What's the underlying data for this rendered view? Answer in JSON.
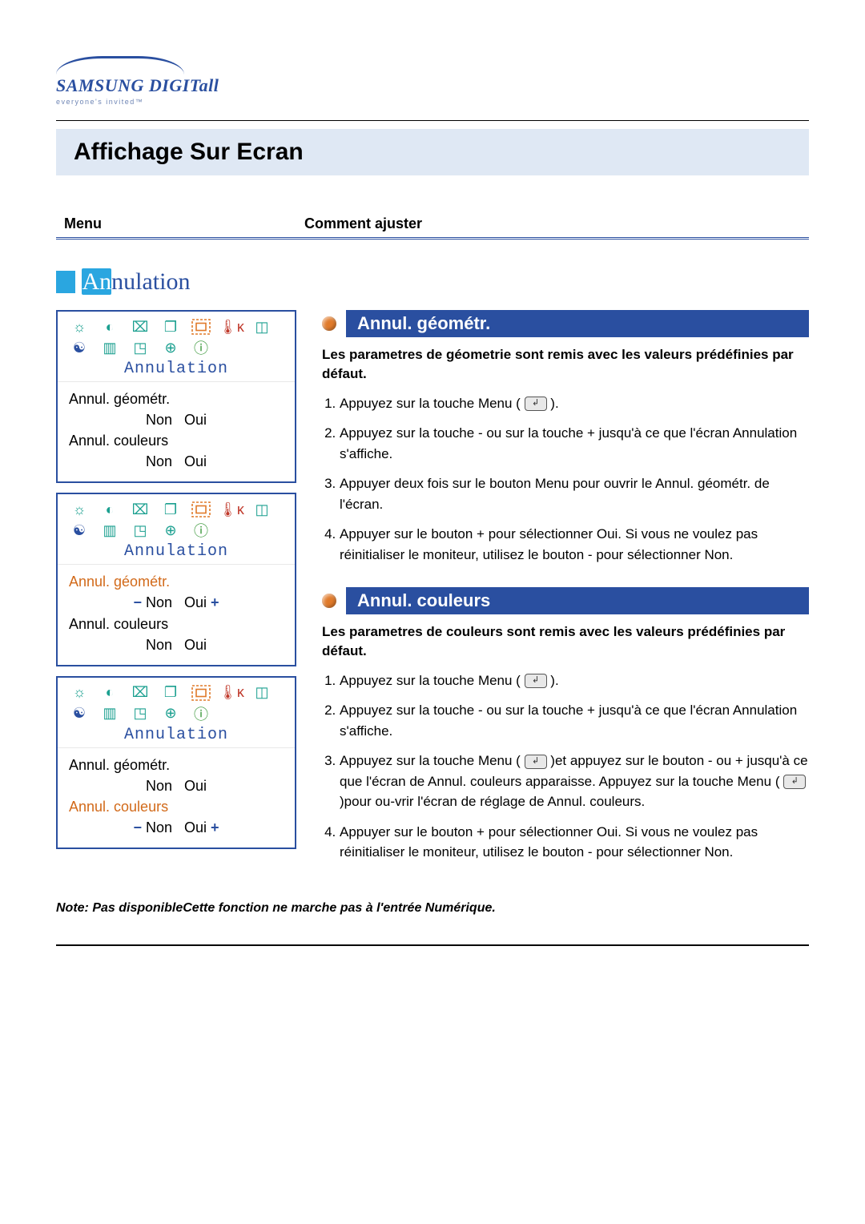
{
  "logo": {
    "brand": "SAMSUNG DIGITall",
    "tagline": "everyone's invited™"
  },
  "page_title": "Affichage Sur Ecran",
  "columns": {
    "menu": "Menu",
    "how": "Comment ajuster"
  },
  "section_heading": "Annulation",
  "osd": {
    "title": "Annulation",
    "item_geom": "Annul. géométr.",
    "item_colors": "Annul. couleurs",
    "opt_no": "Non",
    "opt_yes": "Oui",
    "icons": [
      {
        "name": "brightness-icon",
        "glyph": "☼",
        "color": "c-teal"
      },
      {
        "name": "contrast-icon",
        "glyph": "◐",
        "color": "c-teal"
      },
      {
        "name": "position-icon",
        "glyph": "⌧",
        "color": "c-teal"
      },
      {
        "name": "size-icon",
        "glyph": "❐",
        "color": "c-teal"
      },
      {
        "name": "reset-icon",
        "glyph": "svg-reset",
        "color": "c-orange",
        "highlight": true
      },
      {
        "name": "temperature-icon",
        "glyph": "🌡ᴋ",
        "color": "c-red"
      },
      {
        "name": "geometry-icon",
        "glyph": "◫",
        "color": "c-teal"
      },
      {
        "name": "color-icon",
        "glyph": "☯",
        "color": "c-blue"
      },
      {
        "name": "language-icon",
        "glyph": "▥",
        "color": "c-teal"
      },
      {
        "name": "pip-icon",
        "glyph": "◳",
        "color": "c-teal"
      },
      {
        "name": "clock-icon",
        "glyph": "⊕",
        "color": "c-teal"
      },
      {
        "name": "info-icon",
        "glyph": "ⓘ",
        "color": "c-green"
      }
    ]
  },
  "right": {
    "geom": {
      "title": "Annul. géométr.",
      "desc": "Les parametres de géometrie sont remis avec les valeurs prédéfinies par défaut.",
      "steps": [
        "Appuyez sur la touche Menu ( [btn] ).",
        "Appuyez sur la touche - ou sur la touche + jusqu'à ce que l'écran Annulation s'affiche.",
        "Appuyer deux fois sur le bouton Menu pour ouvrir le Annul. géométr. de l'écran.",
        "Appuyer sur le bouton + pour sélectionner Oui. Si vous ne voulez pas réinitialiser le moniteur,  utilisez le bouton - pour sélectionner Non."
      ]
    },
    "colors": {
      "title": "Annul. couleurs",
      "desc": "Les parametres de couleurs sont remis avec les valeurs prédéfinies par défaut.",
      "steps": [
        "Appuyez sur la touche Menu ( [btn] ).",
        "Appuyez sur la touche - ou sur la touche + jusqu'à ce que l'écran Annulation s'affiche.",
        "Appuyez sur la touche Menu ( [btn] )et appuyez sur le bouton - ou + jusqu'à ce que l'écran de Annul. couleurs apparaisse. Appuyez sur la touche Menu ( [btn] )pour ou-vrir l'écran de réglage de Annul. couleurs.",
        "Appuyer sur le bouton + pour sélectionner Oui. Si vous ne voulez pas réinitialiser le moniteur, utilisez le bouton - pour sélectionner Non."
      ]
    }
  },
  "note": "Note: Pas disponibleCette fonction ne marche pas à l'entrée Numérique.",
  "colors": {
    "brand_blue": "#2a4fa0",
    "light_blue": "#2aa6e0",
    "panel_bg": "#dfe8f4",
    "orange": "#e07a2a",
    "teal": "#1ca090"
  }
}
